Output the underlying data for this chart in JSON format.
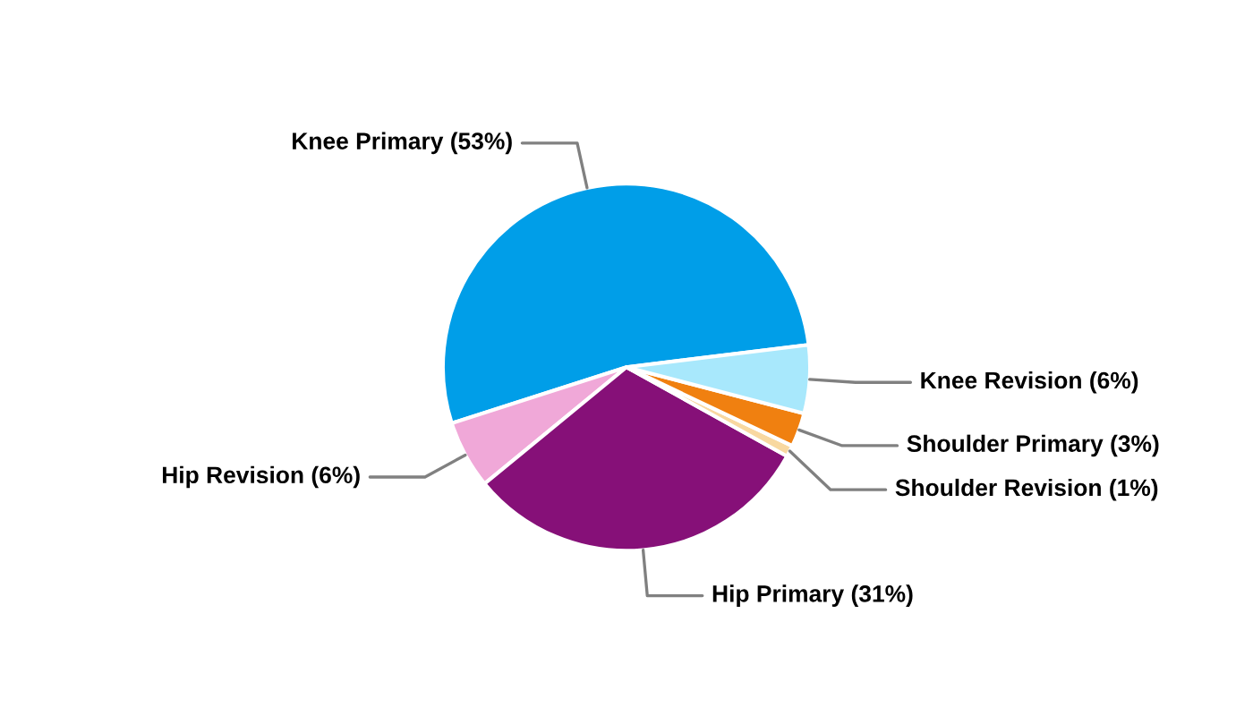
{
  "chart_data": {
    "type": "pie",
    "categories": [
      "Knee Primary (53%)",
      "Hip Revision (6%)",
      "Hip Primary (31%)",
      "Shoulder Revision (1%)",
      "Shoulder Primary (3%)",
      "Knee Revision (6%)"
    ],
    "values": [
      53,
      6,
      31,
      1,
      3,
      6
    ],
    "colors": [
      "#009ee8",
      "#f0a8d8",
      "#861078",
      "#f8d8a0",
      "#f08010",
      "#a8e8fc"
    ],
    "legend": false
  }
}
